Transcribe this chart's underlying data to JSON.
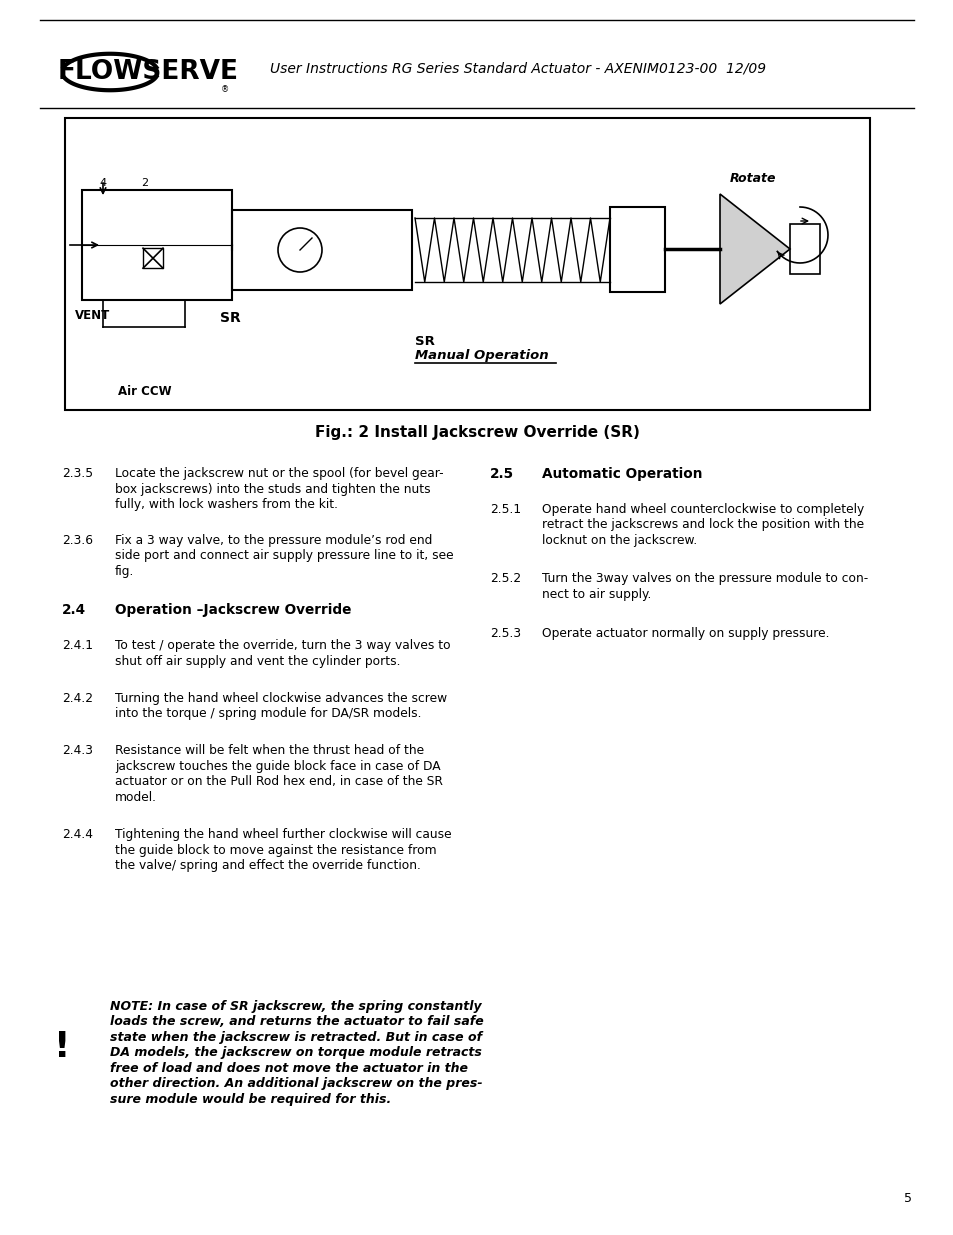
{
  "header_title": "User Instructions RG Series Standard Actuator - AXENIM0123-00  12/09",
  "fig_caption": "Fig.: 2 Install Jackscrew Override (SR)",
  "page_number": "5",
  "bg_color": "#ffffff",
  "text_color": "#000000",
  "body_fs": 8.8,
  "heading_fs": 9.5,
  "note_text_lines": [
    "NOTE: In case of SR jackscrew, the spring constantly",
    "loads the screw, and returns the actuator to fail safe",
    "state when the jackscrew is retracted. But in case of",
    "DA models, the jackscrew on torque module retracts",
    "free of load and does not move the actuator in the",
    "other direction. An additional jackscrew on the pres-",
    "sure module would be required for this."
  ]
}
